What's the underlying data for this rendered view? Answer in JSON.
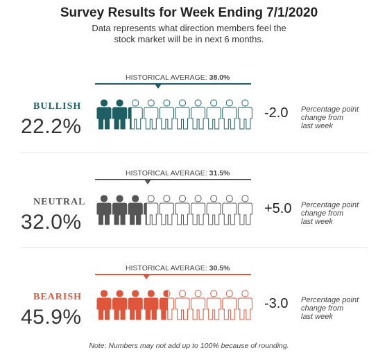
{
  "title": "Survey Results for Week Ending 7/1/2020",
  "subtitle_line1": "Data represents what direction members feel the",
  "subtitle_line2": "stock market will be in next 6 months.",
  "historical_label": "HISTORICAL AVERAGE:",
  "change_note_line1": "Percentage point",
  "change_note_line2": "change from",
  "change_note_line3": "last week",
  "footnote": "Note: Numbers may not add up to 100% because of rounding.",
  "sections": [
    {
      "label": "BULLISH",
      "percent_text": "22.2%",
      "percent": 22.2,
      "historical_text": "38.0%",
      "historical": 38.0,
      "change_text": "-2.0",
      "change": -2.0,
      "color": "#1e5f63"
    },
    {
      "label": "NEUTRAL",
      "percent_text": "32.0%",
      "percent": 32.0,
      "historical_text": "31.5%",
      "historical": 31.5,
      "change_text": "+5.0",
      "change": 5.0,
      "color": "#555555"
    },
    {
      "label": "BEARISH",
      "percent_text": "45.9%",
      "percent": 45.9,
      "historical_text": "30.5%",
      "historical": 30.5,
      "change_text": "-3.0",
      "change": -3.0,
      "color": "#e0563a"
    }
  ],
  "chart_data": {
    "type": "pictograph",
    "title": "Survey Results for Week Ending 7/1/2020",
    "icons_per_row": 10,
    "categories": [
      "BULLISH",
      "NEUTRAL",
      "BEARISH"
    ],
    "values": [
      22.2,
      32.0,
      45.9
    ],
    "historical_average": [
      38.0,
      31.5,
      30.5
    ],
    "change_from_last_week": [
      -2.0,
      5.0,
      -3.0
    ]
  }
}
